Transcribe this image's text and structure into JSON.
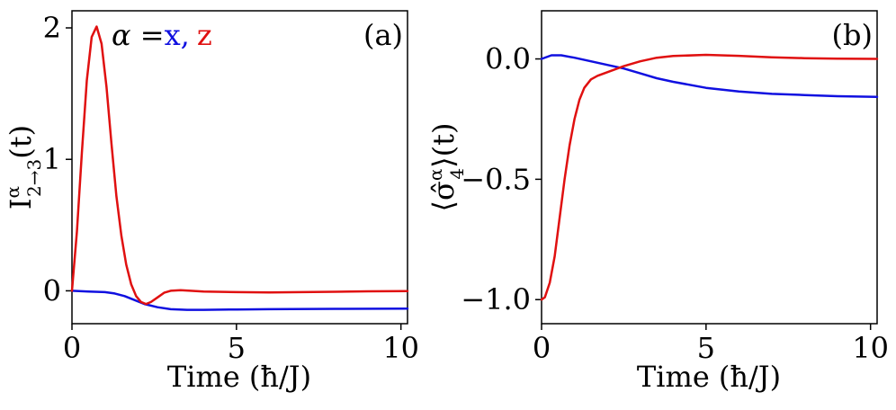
{
  "colors": {
    "x": "#1010e0",
    "z": "#e01010",
    "axis": "#000000"
  },
  "chart_data": [
    {
      "type": "line",
      "panel_label": "(a)",
      "xlabel": "Time (ħ/J)",
      "ylabel": {
        "base": "I",
        "sup": "α",
        "sub": "2→3",
        "suffix": "(t)"
      },
      "legend": {
        "prefix": "α =",
        "x_name": "x",
        "sep": ",",
        "z_name": "z",
        "placement": "top-left"
      },
      "xlim": [
        0,
        10.2
      ],
      "ylim": [
        -0.25,
        2.13
      ],
      "xticks": [
        0,
        5,
        10
      ],
      "xtick_labels": [
        "0",
        "5",
        "10"
      ],
      "yticks": [
        0,
        1,
        2
      ],
      "ytick_labels": [
        "0",
        "1",
        "2"
      ],
      "series": [
        {
          "name": "x",
          "color_key": "x",
          "x": [
            0,
            0.5,
            1.0,
            1.3,
            1.6,
            1.9,
            2.2,
            2.6,
            3.0,
            3.5,
            4.0,
            5.0,
            6.0,
            8.0,
            10.2
          ],
          "y": [
            0.0,
            -0.005,
            -0.01,
            -0.02,
            -0.04,
            -0.07,
            -0.1,
            -0.125,
            -0.14,
            -0.145,
            -0.145,
            -0.142,
            -0.14,
            -0.137,
            -0.135
          ]
        },
        {
          "name": "z",
          "color_key": "z",
          "x": [
            0,
            0.15,
            0.3,
            0.45,
            0.6,
            0.75,
            0.9,
            1.05,
            1.2,
            1.35,
            1.5,
            1.65,
            1.8,
            1.95,
            2.1,
            2.25,
            2.4,
            2.6,
            2.8,
            3.0,
            3.3,
            3.6,
            4.0,
            5.0,
            6.0,
            7.0,
            8.0,
            9.0,
            10.2
          ],
          "y": [
            0.0,
            0.45,
            1.05,
            1.6,
            1.93,
            2.01,
            1.88,
            1.55,
            1.12,
            0.72,
            0.42,
            0.2,
            0.05,
            -0.04,
            -0.085,
            -0.1,
            -0.085,
            -0.05,
            -0.015,
            0.0,
            0.005,
            0.0,
            -0.005,
            -0.01,
            -0.012,
            -0.01,
            -0.007,
            -0.004,
            -0.002
          ]
        }
      ]
    },
    {
      "type": "line",
      "panel_label": "(b)",
      "xlabel": "Time (ħ/J)",
      "ylabel": {
        "base": "⟨σ̂",
        "sup": "α",
        "sub": "4",
        "suffix": "⟩(t)"
      },
      "xlim": [
        0,
        10.2
      ],
      "ylim": [
        -1.1,
        0.2
      ],
      "xticks": [
        0,
        5,
        10
      ],
      "xtick_labels": [
        "0",
        "5",
        "10"
      ],
      "yticks": [
        -1.0,
        -0.5,
        0.0
      ],
      "ytick_labels": [
        "−1.0",
        "−0.5",
        "0.0"
      ],
      "series": [
        {
          "name": "x",
          "color_key": "x",
          "x": [
            0,
            0.3,
            0.6,
            1.0,
            1.5,
            2.0,
            2.5,
            3.0,
            3.5,
            4.0,
            5.0,
            6.0,
            7.0,
            8.0,
            9.0,
            10.2
          ],
          "y": [
            0.0,
            0.015,
            0.015,
            0.005,
            -0.01,
            -0.025,
            -0.04,
            -0.06,
            -0.08,
            -0.095,
            -0.12,
            -0.135,
            -0.145,
            -0.15,
            -0.155,
            -0.158
          ]
        },
        {
          "name": "z",
          "color_key": "z",
          "x": [
            0,
            0.1,
            0.25,
            0.4,
            0.55,
            0.7,
            0.85,
            1.0,
            1.15,
            1.3,
            1.5,
            1.7,
            2.0,
            2.5,
            3.0,
            3.5,
            4.0,
            5.0,
            6.0,
            7.0,
            8.0,
            9.0,
            10.2
          ],
          "y": [
            -1.0,
            -0.99,
            -0.93,
            -0.82,
            -0.66,
            -0.5,
            -0.36,
            -0.25,
            -0.17,
            -0.12,
            -0.085,
            -0.07,
            -0.055,
            -0.03,
            -0.01,
            0.005,
            0.012,
            0.017,
            0.013,
            0.007,
            0.003,
            0.001,
            0.0
          ]
        }
      ]
    }
  ]
}
